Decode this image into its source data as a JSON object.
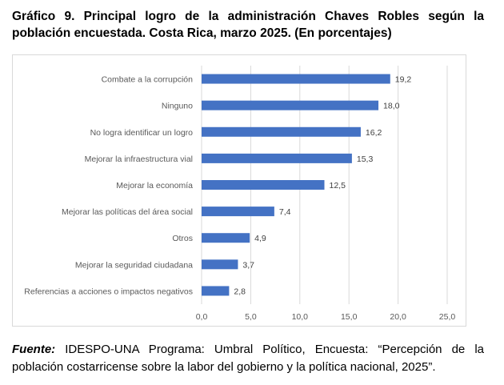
{
  "title": "Gráfico 9. Principal logro de la administración Chaves Robles según la población encuestada. Costa Rica, marzo 2025. (En porcentajes)",
  "source": {
    "label": "Fuente:",
    "text": " IDESPO-UNA Programa: Umbral Político, Encuesta: “Percepción de la población costarricense sobre la labor del gobierno y la política nacional, 2025”."
  },
  "chart_data": {
    "type": "bar",
    "orientation": "horizontal",
    "categories": [
      "Combate a la corrupción",
      "Ninguno",
      "No logra identificar un logro",
      "Mejorar la infraestructura vial",
      "Mejorar la economía",
      "Mejorar las políticas del área social",
      "Otros",
      "Mejorar la seguridad ciudadana",
      "Referencias a acciones o impactos negativos"
    ],
    "values": [
      19.2,
      18.0,
      16.2,
      15.3,
      12.5,
      7.4,
      4.9,
      3.7,
      2.8
    ],
    "value_labels": [
      "19,2",
      "18,0",
      "16,2",
      "15,3",
      "12,5",
      "7,4",
      "4,9",
      "3,7",
      "2,8"
    ],
    "xlim": [
      0,
      25
    ],
    "ticks": [
      0,
      5,
      10,
      15,
      20,
      25
    ],
    "tick_labels": [
      "0,0",
      "5,0",
      "10,0",
      "15,0",
      "20,0",
      "25,0"
    ],
    "grid": "vertical",
    "bar_color": "#4472c4",
    "grid_color": "#d9d9d9"
  }
}
